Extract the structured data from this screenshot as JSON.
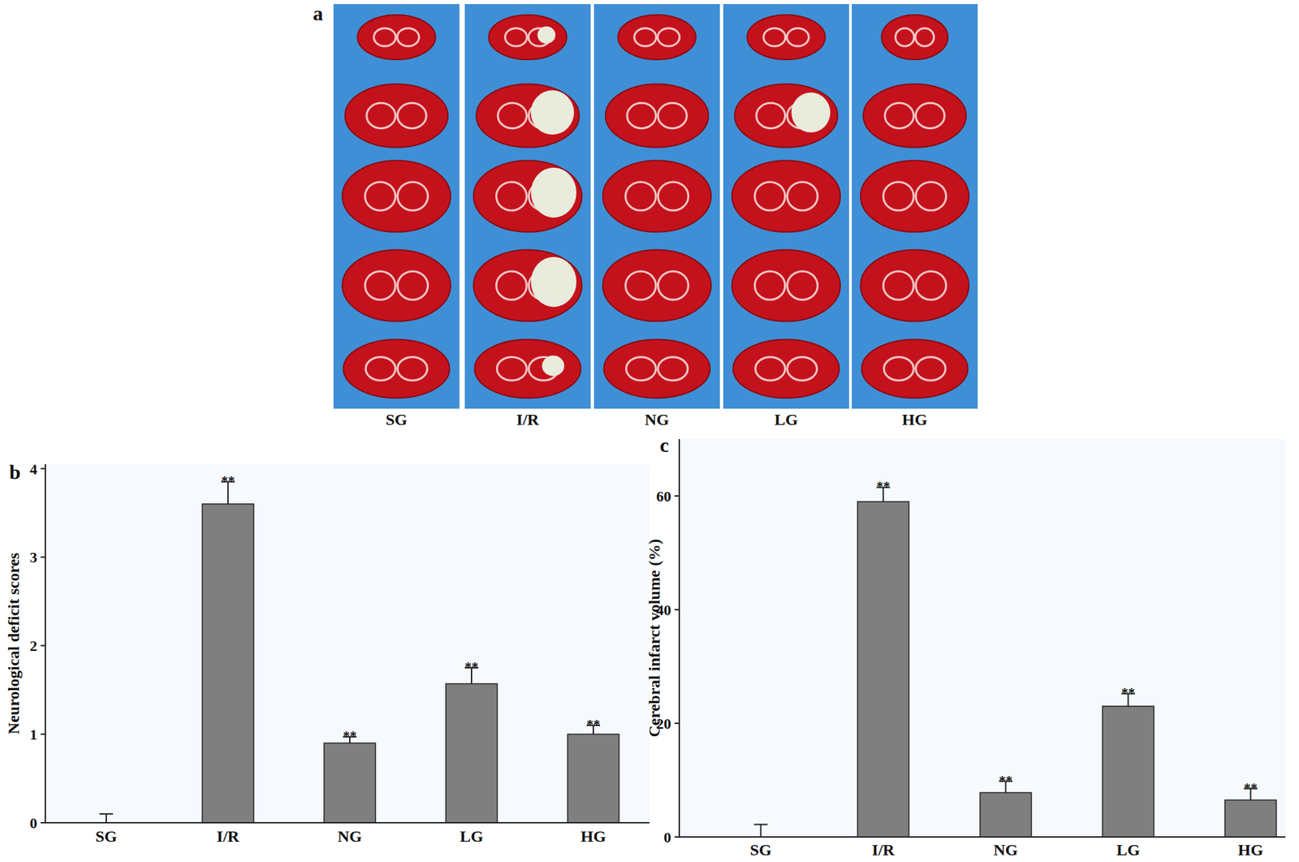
{
  "panel_a": {
    "label": "a",
    "groups": [
      "SG",
      "I/R",
      "NG",
      "LG",
      "HG"
    ]
  },
  "chart_data": [
    {
      "type": "bar",
      "panel": "b",
      "y_label": "Neurological deficit scores",
      "categories": [
        "SG",
        "I/R",
        "NG",
        "LG",
        "HG"
      ],
      "values": [
        0,
        3.6,
        0.9,
        1.57,
        1.0
      ],
      "errors": [
        0.1,
        0.25,
        0.07,
        0.18,
        0.1
      ],
      "annotations": [
        null,
        "**",
        "**",
        "**",
        "**"
      ],
      "color": "#7f7f7f",
      "ylim": [
        0,
        4.05
      ],
      "yticks": [
        0,
        1,
        2,
        3,
        4
      ],
      "grid": false
    },
    {
      "type": "bar",
      "panel": "c",
      "y_label": "Cerebral infarct volume (%)",
      "categories": [
        "SG",
        "I/R",
        "NG",
        "LG",
        "HG"
      ],
      "values": [
        0,
        59,
        7.8,
        23,
        6.5
      ],
      "errors": [
        2.2,
        2.5,
        2.0,
        2.2,
        2.0
      ],
      "annotations": [
        null,
        "**",
        "**",
        "**",
        "**"
      ],
      "color": "#7f7f7f",
      "ylim": [
        0,
        70
      ],
      "yticks": [
        0,
        20,
        40,
        60
      ],
      "grid": false
    }
  ]
}
